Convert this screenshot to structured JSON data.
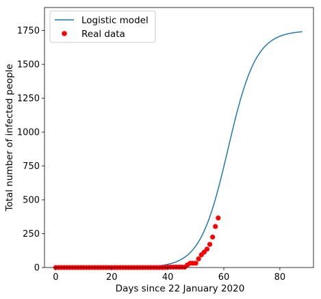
{
  "chart_data": {
    "type": "line",
    "title": "",
    "xlabel": "Days since 22 January 2020",
    "ylabel": "Total number of infected people",
    "xlim": [
      -4,
      92
    ],
    "ylim": [
      0,
      1920
    ],
    "xticks": [
      0,
      20,
      40,
      60,
      80
    ],
    "yticks": [
      0,
      250,
      500,
      750,
      1000,
      1250,
      1500,
      1750
    ],
    "grid": false,
    "legend": {
      "placement": "top-left",
      "entries": [
        "Logistic model",
        "Real data"
      ]
    },
    "colors": {
      "model": "#1f77b4",
      "data": "#ff0000"
    },
    "series": [
      {
        "name": "Logistic model",
        "kind": "line",
        "model": {
          "K": 1750,
          "r": 0.2,
          "x0": 61.5,
          "x_start": 0,
          "x_end": 88
        }
      },
      {
        "name": "Real data",
        "kind": "scatter",
        "x": [
          0,
          1,
          2,
          3,
          4,
          5,
          6,
          7,
          8,
          9,
          10,
          11,
          12,
          13,
          14,
          15,
          16,
          17,
          18,
          19,
          20,
          21,
          22,
          23,
          24,
          25,
          26,
          27,
          28,
          29,
          30,
          31,
          32,
          33,
          34,
          35,
          36,
          37,
          38,
          39,
          40,
          41,
          42,
          43,
          44,
          45,
          46,
          47,
          48,
          49,
          50,
          51,
          52,
          53,
          54,
          55,
          56,
          57,
          58
        ],
        "y": [
          0,
          0,
          0,
          0,
          0,
          0,
          0,
          0,
          0,
          0,
          0,
          0,
          0,
          0,
          0,
          0,
          0,
          0,
          0,
          0,
          0,
          0,
          0,
          0,
          0,
          0,
          0,
          0,
          0,
          0,
          0,
          0,
          0,
          0,
          0,
          0,
          0,
          0,
          0,
          0,
          3,
          3,
          3,
          3,
          3,
          3,
          3,
          19,
          32,
          32,
          32,
          64,
          94,
          114,
          136,
          171,
          225,
          303,
          366
        ]
      }
    ]
  }
}
